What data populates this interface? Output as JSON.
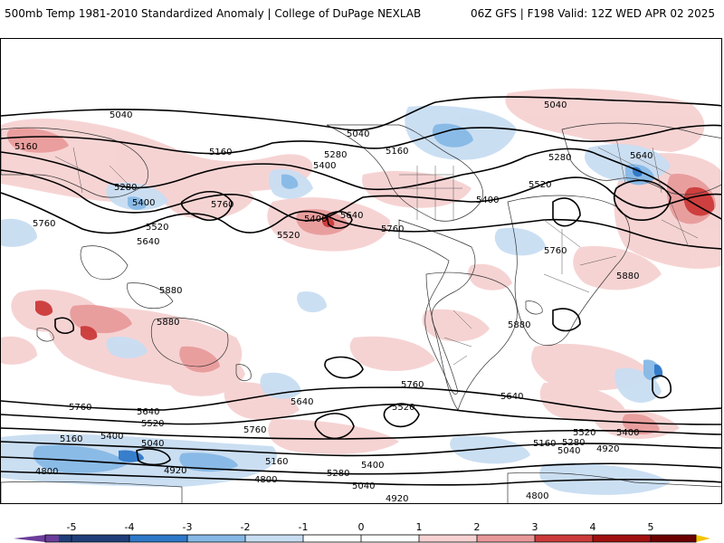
{
  "header": {
    "title": "500mb Temp 1981-2010 Standardized Anomaly | College of DuPage NEXLAB",
    "run_info": "06Z GFS | F198 Valid: 12Z WED APR 02 2025"
  },
  "colorbar": {
    "ticks": [
      "-5",
      "-4",
      "-3",
      "-2",
      "-1",
      "0",
      "1",
      "2",
      "3",
      "4",
      "5"
    ],
    "colors": [
      "#6a3d9a",
      "#1f3f7a",
      "#2e78c8",
      "#86b8e6",
      "#c8ddf2",
      "#ffffff",
      "#f7d2d2",
      "#e89898",
      "#cc3a3a",
      "#a01010",
      "#6b0000",
      "#f5c400"
    ]
  },
  "contour_labels": [
    "5040",
    "5040",
    "5040",
    "5160",
    "5160",
    "5160",
    "5280",
    "5280",
    "5280",
    "5400",
    "5400",
    "5400",
    "5520",
    "5520",
    "5520",
    "5640",
    "5640",
    "5640",
    "5760",
    "5760",
    "5760",
    "5760",
    "5880",
    "5880",
    "5880",
    "5880",
    "5760",
    "5640",
    "5520",
    "5400",
    "5160",
    "5040",
    "4920",
    "4800",
    "4800",
    "4920",
    "4800",
    "5040",
    "5160",
    "5280",
    "5400",
    "5520",
    "5640",
    "5760",
    "5520",
    "5400",
    "5280",
    "5160",
    "5040",
    "4920",
    "4800",
    "5640",
    "5760",
    "5400",
    "5520",
    "5040",
    "5160",
    "5280",
    "5640",
    "5760"
  ]
}
